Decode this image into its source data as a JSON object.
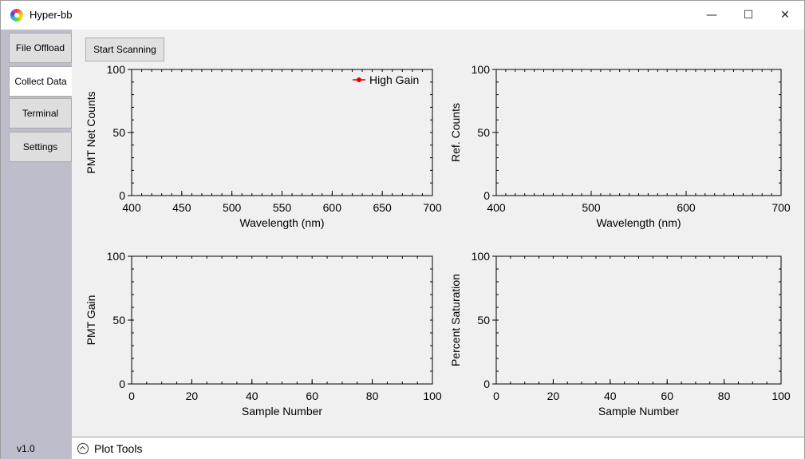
{
  "window": {
    "title": "Hyper-bb",
    "minimize_glyph": "—",
    "maximize_glyph": "☐",
    "close_glyph": "✕"
  },
  "sidebar": {
    "tabs": [
      {
        "label": "File Offload",
        "active": false
      },
      {
        "label": "Collect Data",
        "active": true
      },
      {
        "label": "Terminal",
        "active": false
      },
      {
        "label": "Settings",
        "active": false
      }
    ],
    "version": "v1.0"
  },
  "toolbar": {
    "start_label": "Start Scanning"
  },
  "footer": {
    "plot_tools_label": "Plot Tools"
  },
  "colors": {
    "high_gain_series": "#e00000",
    "sidebar_bg": "#bdbdcb"
  },
  "chart_data": [
    {
      "type": "line",
      "xlabel": "Wavelength (nm)",
      "ylabel": "PMT Net Counts",
      "xlim": [
        400,
        700
      ],
      "ylim": [
        0,
        100
      ],
      "xticks": [
        400,
        450,
        500,
        550,
        600,
        650,
        700
      ],
      "yticks": [
        0,
        50,
        100
      ],
      "series": [
        {
          "name": "High Gain",
          "x": [],
          "y": []
        }
      ],
      "legend": "top-right"
    },
    {
      "type": "line",
      "xlabel": "Wavelength (nm)",
      "ylabel": "Ref. Counts",
      "xlim": [
        400,
        700
      ],
      "ylim": [
        0,
        100
      ],
      "xticks": [
        400,
        500,
        600,
        700
      ],
      "yticks": [
        0,
        50,
        100
      ],
      "series": []
    },
    {
      "type": "line",
      "xlabel": "Sample Number",
      "ylabel": "PMT Gain",
      "xlim": [
        0,
        100
      ],
      "ylim": [
        0,
        100
      ],
      "xticks": [
        0,
        20,
        40,
        60,
        80,
        100
      ],
      "yticks": [
        0,
        50,
        100
      ],
      "series": []
    },
    {
      "type": "line",
      "xlabel": "Sample Number",
      "ylabel": "Percent Saturation",
      "xlim": [
        0,
        100
      ],
      "ylim": [
        0,
        100
      ],
      "xticks": [
        0,
        20,
        40,
        60,
        80,
        100
      ],
      "yticks": [
        0,
        50,
        100
      ],
      "series": []
    }
  ]
}
